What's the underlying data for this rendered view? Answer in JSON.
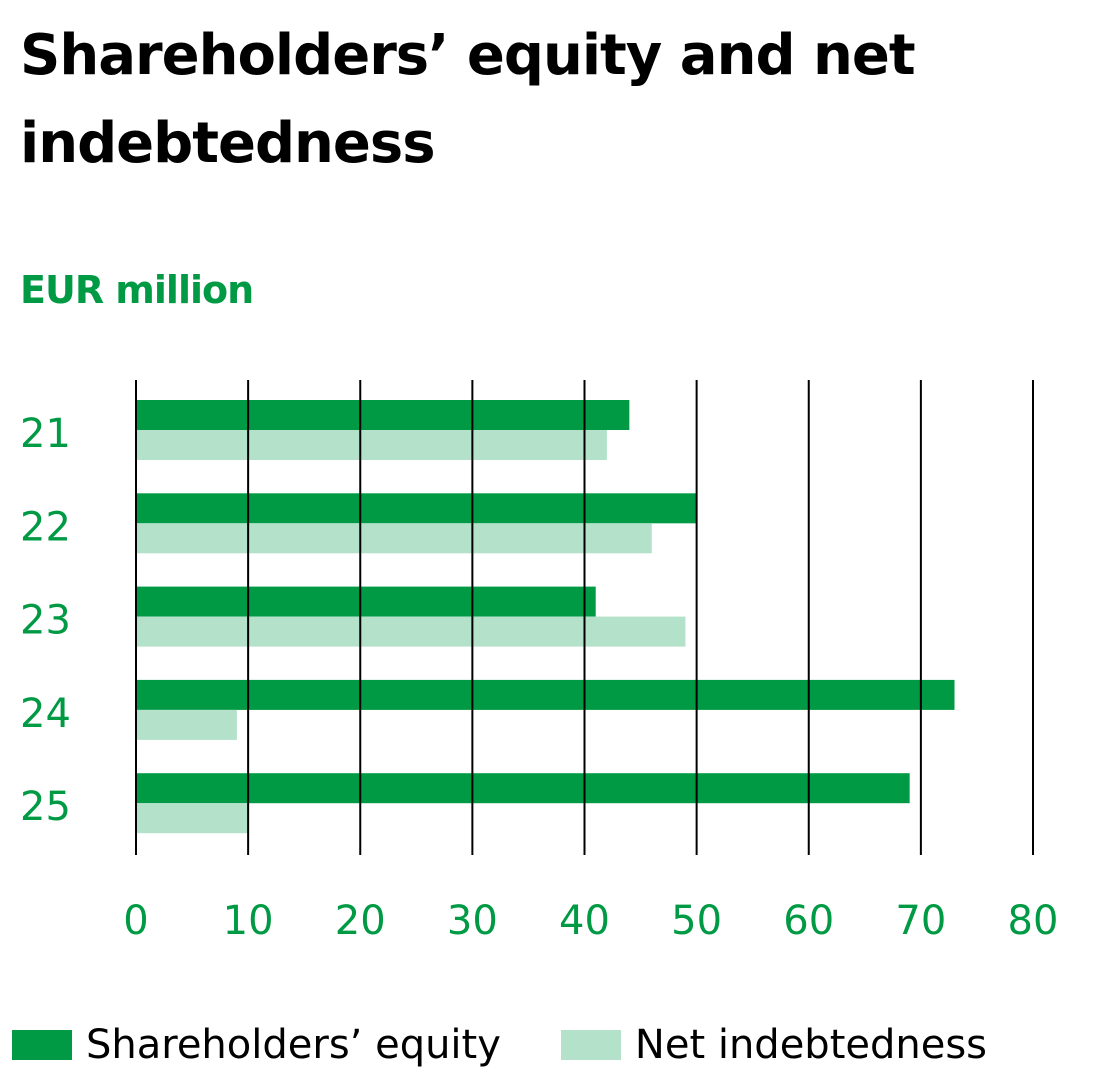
{
  "chart_data": {
    "type": "bar",
    "orientation": "horizontal",
    "title": "Shareholders’ equity and net indebtedness",
    "ylabel": "EUR million",
    "categories": [
      "21",
      "22",
      "23",
      "24",
      "25"
    ],
    "series": [
      {
        "name": "Shareholders’ equity",
        "color": "#009a44",
        "values": [
          44,
          50,
          41,
          73,
          69
        ]
      },
      {
        "name": "Net indebtedness",
        "color": "#b3e1c9",
        "values": [
          42,
          46,
          49,
          9,
          10
        ]
      }
    ],
    "xticks": [
      "0",
      "10",
      "20",
      "30",
      "40",
      "50",
      "60",
      "70",
      "80"
    ],
    "xlim": [
      0,
      80
    ],
    "grid": true,
    "legend": "bottom"
  }
}
